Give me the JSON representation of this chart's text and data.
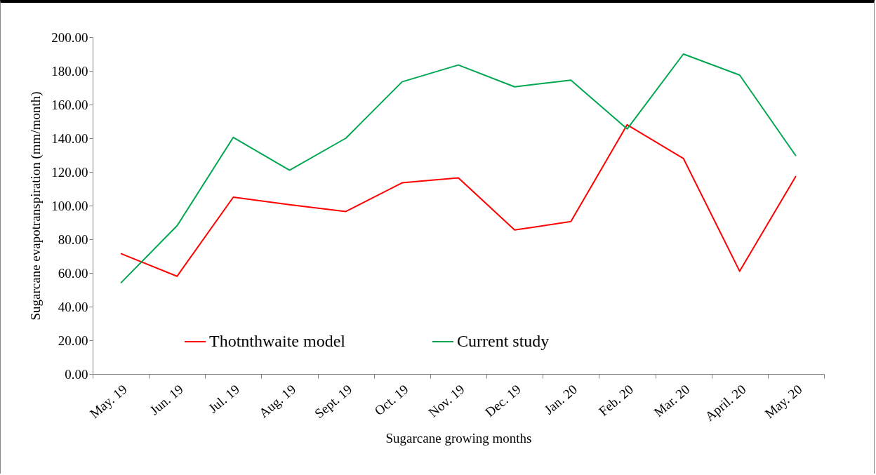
{
  "chart_data": {
    "type": "line",
    "xlabel": "Sugarcane growing months",
    "ylabel": "Sugarcane evapotranspiration (mm/month)",
    "categories": [
      "May. 19",
      "Jun. 19",
      "Jul. 19",
      "Aug. 19",
      "Sept. 19",
      "Oct. 19",
      "Nov. 19",
      "Dec. 19",
      "Jan. 20",
      "Feb. 20",
      "Mar. 20",
      "April. 20",
      "May. 20"
    ],
    "series": [
      {
        "name": "Thotnthwaite model",
        "color": "#ff0000",
        "values": [
          71.5,
          58,
          105,
          100.5,
          96.5,
          113.5,
          116.5,
          85.5,
          90.5,
          148,
          128,
          61,
          117.5
        ]
      },
      {
        "name": "Current study",
        "color": "#00a651",
        "values": [
          54,
          88,
          140.5,
          121,
          140,
          173.5,
          183.5,
          170.5,
          174.5,
          145.5,
          190,
          177.5,
          129.5
        ]
      }
    ],
    "ylim": [
      0,
      200
    ],
    "yticks": [
      {
        "value": 0,
        "label": "0.00"
      },
      {
        "value": 20,
        "label": "20.00"
      },
      {
        "value": 40,
        "label": "40.00"
      },
      {
        "value": 60,
        "label": "60.00"
      },
      {
        "value": 80,
        "label": "80.00"
      },
      {
        "value": 100,
        "label": "100.00"
      },
      {
        "value": 120,
        "label": "120.00"
      },
      {
        "value": 140,
        "label": "140.00"
      },
      {
        "value": 160,
        "label": "160.00"
      },
      {
        "value": 180,
        "label": "180.00"
      },
      {
        "value": 200,
        "label": "200.00"
      }
    ],
    "grid": false,
    "legend": "bottom",
    "marker": "none",
    "line_style": "solid"
  }
}
